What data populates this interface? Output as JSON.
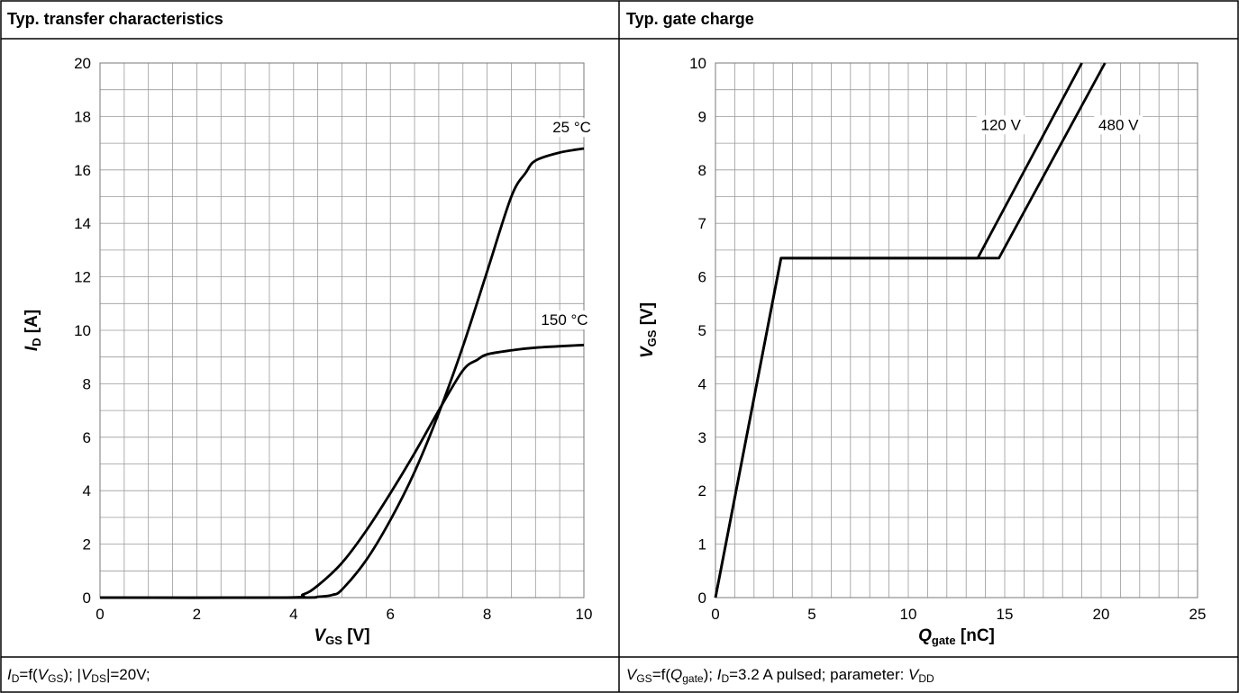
{
  "left": {
    "title": "Typ. transfer characteristics",
    "caption": {
      "sym1": "I",
      "sub1": "D",
      "t1": "=f(",
      "sym2": "V",
      "sub2": "GS",
      "t2": "); |",
      "sym3": "V",
      "sub3": "DS",
      "t3": "|=20V;"
    }
  },
  "right": {
    "title": "Typ. gate charge",
    "caption": {
      "sym1": "V",
      "sub1": "GS",
      "t1": "=f(",
      "sym2": "Q",
      "sub2": "gate",
      "t2": "); ",
      "sym3": "I",
      "sub3": "D",
      "t3": "=3.2 A pulsed; parameter: ",
      "sym4": "V",
      "sub4": "DD"
    }
  },
  "chart_data": [
    {
      "type": "line",
      "title": "Typ. transfer characteristics",
      "xlabel": {
        "symbol": "V",
        "sub": "GS",
        "unit": " [V]"
      },
      "ylabel": {
        "symbol": "I",
        "sub": "D",
        "unit": " [A]"
      },
      "xlim": [
        0,
        10
      ],
      "ylim": [
        0,
        20
      ],
      "xticks": [
        0,
        2,
        4,
        6,
        8,
        10
      ],
      "yticks": [
        0,
        2,
        4,
        6,
        8,
        10,
        12,
        14,
        16,
        18,
        20
      ],
      "x_minor": 0.5,
      "y_minor": 1,
      "grid": true,
      "series": [
        {
          "name": "25 °C",
          "x": [
            0,
            4.0,
            4.5,
            4.8,
            5.0,
            5.5,
            6.0,
            6.5,
            7.0,
            7.5,
            8.0,
            8.5,
            8.8,
            9.0,
            9.5,
            10.0
          ],
          "y": [
            0,
            0,
            0.03,
            0.1,
            0.3,
            1.4,
            2.9,
            4.7,
            6.9,
            9.4,
            12.2,
            15.0,
            15.9,
            16.35,
            16.65,
            16.8
          ],
          "label_at": [
            9.75,
            17.4
          ]
        },
        {
          "name": "150 °C",
          "x": [
            0,
            3.8,
            4.2,
            4.5,
            5.0,
            5.5,
            6.0,
            6.5,
            7.0,
            7.5,
            7.8,
            8.0,
            8.5,
            9.0,
            10.0
          ],
          "y": [
            0,
            0,
            0.12,
            0.45,
            1.3,
            2.5,
            3.9,
            5.4,
            7.0,
            8.5,
            8.9,
            9.1,
            9.25,
            9.35,
            9.45
          ],
          "label_at": [
            9.6,
            10.2
          ]
        }
      ]
    },
    {
      "type": "line",
      "title": "Typ. gate charge",
      "xlabel": {
        "symbol": "Q",
        "sub": "gate",
        "unit": " [nC]"
      },
      "ylabel": {
        "symbol": "V",
        "sub": "GS",
        "unit": " [V]"
      },
      "xlim": [
        0,
        25
      ],
      "ylim": [
        0,
        10
      ],
      "xticks": [
        0,
        5,
        10,
        15,
        20,
        25
      ],
      "yticks": [
        0,
        1,
        2,
        3,
        4,
        5,
        6,
        7,
        8,
        9,
        10
      ],
      "x_minor": 1,
      "y_minor": 0.5,
      "grid": true,
      "series": [
        {
          "name": "120 V",
          "x": [
            0,
            3.4,
            13.6,
            19.0
          ],
          "y": [
            0,
            6.35,
            6.35,
            10.0
          ],
          "label_at": [
            14.8,
            8.75
          ]
        },
        {
          "name": "480 V",
          "x": [
            0,
            3.4,
            14.7,
            20.2
          ],
          "y": [
            0,
            6.35,
            6.35,
            10.0
          ],
          "label_at": [
            20.9,
            8.75
          ]
        }
      ]
    }
  ]
}
